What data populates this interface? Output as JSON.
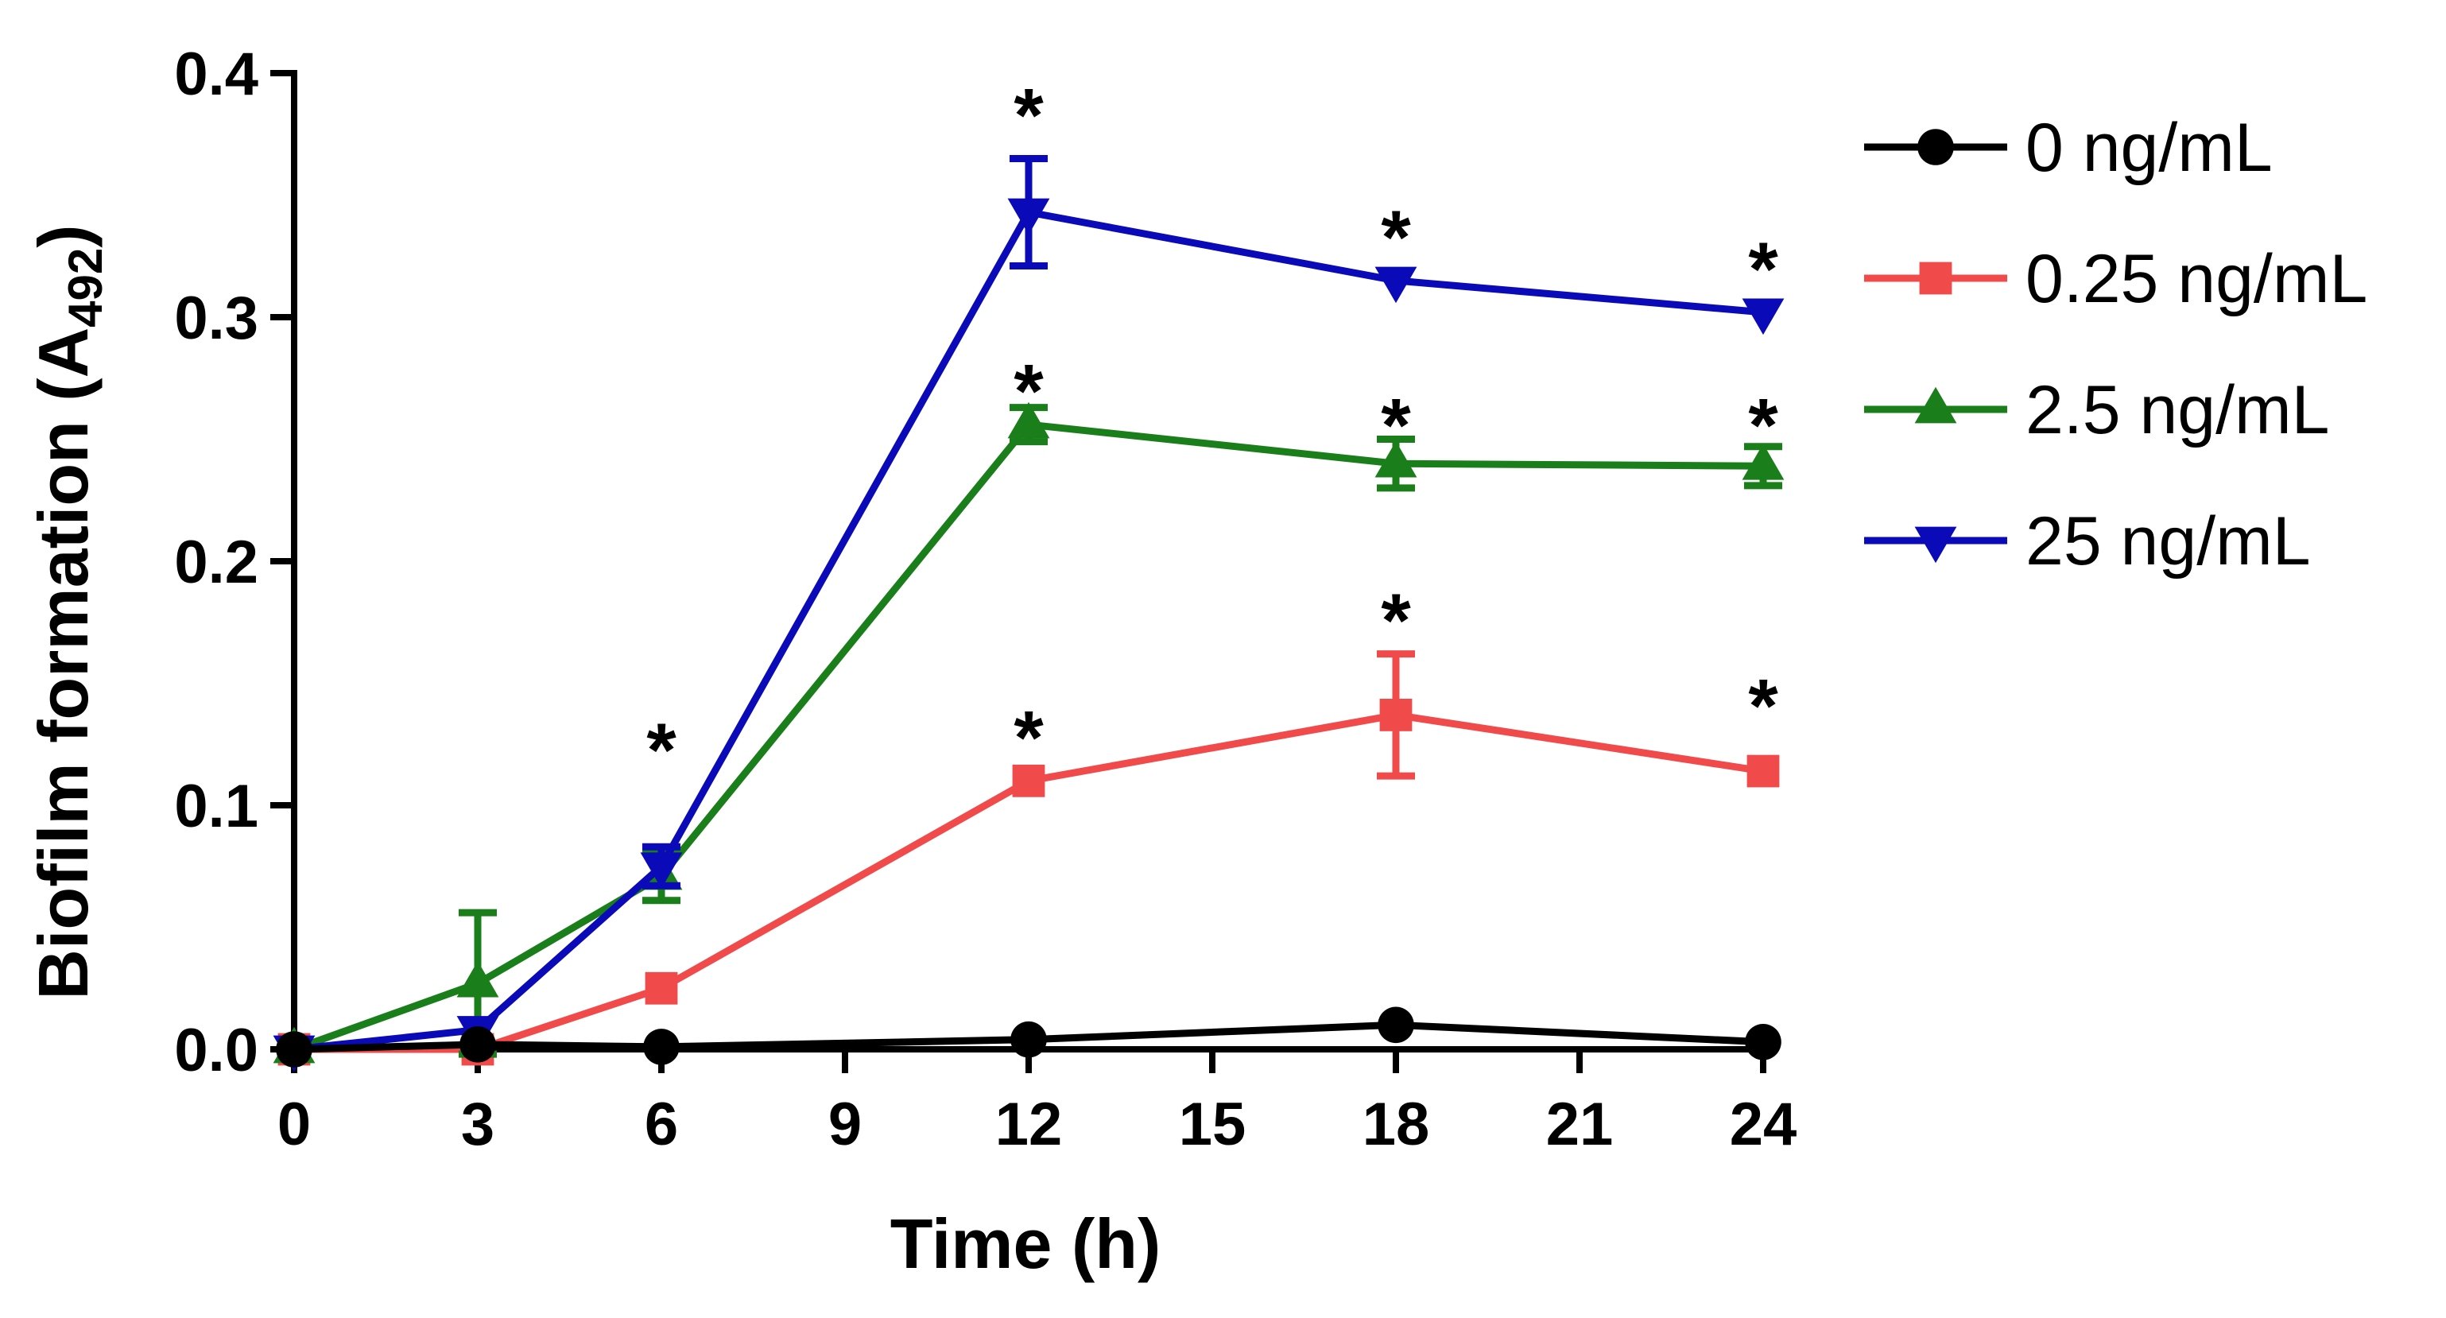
{
  "chart_data": {
    "type": "line",
    "title": "",
    "xlabel": "Time (h)",
    "ylabel_main": "Biofilm formation (A",
    "ylabel_sub": "492",
    "ylabel_close": ")",
    "xlim": [
      0,
      24
    ],
    "ylim": [
      0,
      0.4
    ],
    "xticks": [
      0,
      3,
      6,
      9,
      12,
      15,
      18,
      21,
      24
    ],
    "xtick_labels": [
      "0",
      "3",
      "6",
      "9",
      "12",
      "15",
      "18",
      "21",
      "24"
    ],
    "yticks": [
      0,
      0.1,
      0.2,
      0.3,
      0.4
    ],
    "ytick_labels": [
      "0.0",
      "0.1",
      "0.2",
      "0.3",
      "0.4"
    ],
    "x": [
      0,
      3,
      6,
      12,
      18,
      24
    ],
    "series": [
      {
        "name": "0 ng/mL",
        "color": "#000000",
        "marker": "circle",
        "values": [
          0.0,
          0.002,
          0.001,
          0.004,
          0.01,
          0.003
        ],
        "errors": [
          0,
          0,
          0,
          0,
          0,
          0
        ]
      },
      {
        "name": "0.25 ng/mL",
        "color": "#f04a4a",
        "marker": "square",
        "values": [
          0.0,
          0.0,
          0.025,
          0.11,
          0.137,
          0.114
        ],
        "errors": [
          0,
          0,
          0,
          0,
          0.025,
          0
        ]
      },
      {
        "name": "2.5 ng/mL",
        "color": "#1a7f1a",
        "marker": "triangle-up",
        "values": [
          0.0,
          0.027,
          0.071,
          0.256,
          0.24,
          0.239
        ],
        "errors": [
          0,
          0.029,
          0.01,
          0.007,
          0.01,
          0.008
        ]
      },
      {
        "name": "25 ng/mL",
        "color": "#0a0ab8",
        "marker": "triangle-down",
        "values": [
          0.0,
          0.008,
          0.075,
          0.343,
          0.315,
          0.302
        ],
        "errors": [
          0,
          0,
          0.008,
          0.022,
          0,
          0
        ]
      }
    ],
    "annotations": [
      {
        "text": "*",
        "x": 6,
        "y": 0.125
      },
      {
        "text": "*",
        "x": 12,
        "y": 0.385
      },
      {
        "text": "*",
        "x": 12,
        "y": 0.272
      },
      {
        "text": "*",
        "x": 12,
        "y": 0.13
      },
      {
        "text": "*",
        "x": 18,
        "y": 0.335
      },
      {
        "text": "*",
        "x": 18,
        "y": 0.258
      },
      {
        "text": "*",
        "x": 18,
        "y": 0.178
      },
      {
        "text": "*",
        "x": 24,
        "y": 0.322
      },
      {
        "text": "*",
        "x": 24,
        "y": 0.258
      },
      {
        "text": "*",
        "x": 24,
        "y": 0.143
      }
    ],
    "legend_position": "right"
  }
}
